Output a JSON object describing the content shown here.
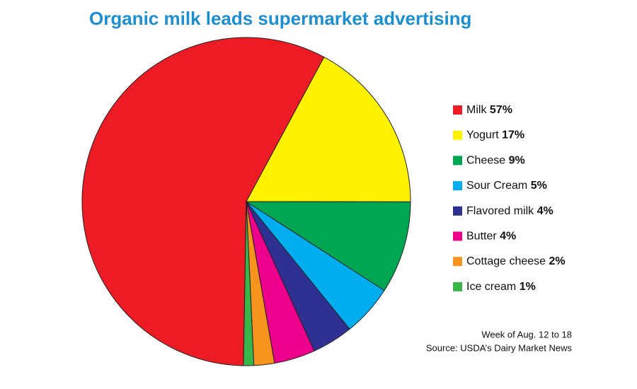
{
  "chart_data": {
    "type": "pie",
    "title": "Organic milk leads supermarket advertising",
    "categories": [
      "Milk",
      "Yogurt",
      "Cheese",
      "Sour Cream",
      "Flavored milk",
      "Butter",
      "Cottage cheese",
      "Ice cream"
    ],
    "values": [
      57,
      17,
      9,
      5,
      4,
      4,
      2,
      1
    ],
    "value_labels": [
      "57%",
      "17%",
      "9%",
      "5%",
      "4%",
      "4%",
      "2%",
      "1%"
    ],
    "colors": [
      "#ed1c24",
      "#fff200",
      "#00a651",
      "#00aeef",
      "#2e3192",
      "#ec008c",
      "#f7941d",
      "#39b54a"
    ],
    "annotations": [
      "Week of Aug. 12 to 18",
      "Source: USDA’s Dairy Market News"
    ]
  }
}
